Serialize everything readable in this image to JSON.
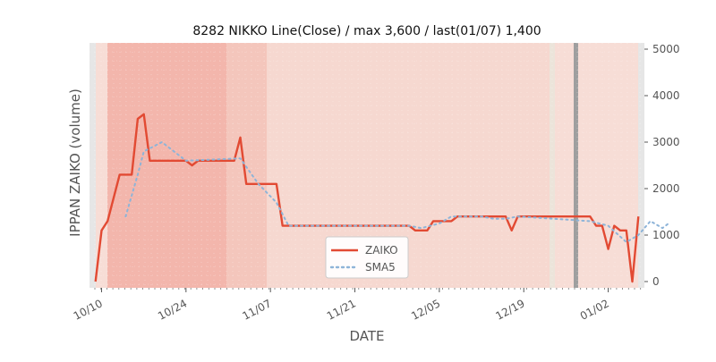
{
  "chart_data": {
    "type": "line",
    "title": "8282 NIKKO Line(Close) / max 3,600 / last(01/07) 1,400",
    "xlabel": "DATE",
    "ylabel": "IPPAN ZAIKO (volume)",
    "ylim": [
      0,
      5000
    ],
    "y_ticks": [
      "0",
      "1000",
      "2000",
      "3000",
      "4000",
      "5000"
    ],
    "y_axis_side": "right",
    "x_ticks": [
      {
        "date": "2021-10-10",
        "label": "10/10"
      },
      {
        "date": "2021-10-24",
        "label": "10/24"
      },
      {
        "date": "2021-11-07",
        "label": "11/07"
      },
      {
        "date": "2021-11-21",
        "label": "11/21"
      },
      {
        "date": "2021-12-05",
        "label": "12/05"
      },
      {
        "date": "2021-12-19",
        "label": "12/19"
      },
      {
        "date": "2022-01-02",
        "label": "01/02"
      }
    ],
    "x_range": [
      "2021-10-08",
      "2022-01-08"
    ],
    "legend_position": "bottom-center",
    "colors": {
      "zaiko": "#e24a33",
      "sma5": "#8eb4d8",
      "highlight": "#9f9f9f"
    },
    "series": [
      {
        "name": "ZAIKO",
        "style": "solid",
        "points": [
          [
            "2021-10-09",
            0
          ],
          [
            "2021-10-10",
            1100
          ],
          [
            "2021-10-11",
            1300
          ],
          [
            "2021-10-13",
            2300
          ],
          [
            "2021-10-15",
            2300
          ],
          [
            "2021-10-16",
            3500
          ],
          [
            "2021-10-17",
            3600
          ],
          [
            "2021-10-18",
            2600
          ],
          [
            "2021-10-24",
            2600
          ],
          [
            "2021-10-25",
            2500
          ],
          [
            "2021-10-26",
            2600
          ],
          [
            "2021-11-01",
            2600
          ],
          [
            "2021-11-02",
            3100
          ],
          [
            "2021-11-03",
            2100
          ],
          [
            "2021-11-08",
            2100
          ],
          [
            "2021-11-09",
            1200
          ],
          [
            "2021-11-30",
            1200
          ],
          [
            "2021-12-01",
            1100
          ],
          [
            "2021-12-03",
            1100
          ],
          [
            "2021-12-04",
            1300
          ],
          [
            "2021-12-07",
            1300
          ],
          [
            "2021-12-08",
            1400
          ],
          [
            "2021-12-16",
            1400
          ],
          [
            "2021-12-17",
            1100
          ],
          [
            "2021-12-18",
            1400
          ],
          [
            "2021-12-30",
            1400
          ],
          [
            "2021-12-31",
            1200
          ],
          [
            "2022-01-01",
            1200
          ],
          [
            "2022-01-02",
            700
          ],
          [
            "2022-01-03",
            1200
          ],
          [
            "2022-01-04",
            1100
          ],
          [
            "2022-01-05",
            1100
          ],
          [
            "2022-01-06",
            0
          ],
          [
            "2022-01-07",
            1400
          ]
        ]
      },
      {
        "name": "SMA5",
        "style": "dotted",
        "points": [
          [
            "2021-10-14",
            1400
          ],
          [
            "2021-10-16",
            2300
          ],
          [
            "2021-10-17",
            2800
          ],
          [
            "2021-10-20",
            3000
          ],
          [
            "2021-10-24",
            2600
          ],
          [
            "2021-11-02",
            2650
          ],
          [
            "2021-11-05",
            2100
          ],
          [
            "2021-11-08",
            1700
          ],
          [
            "2021-11-10",
            1200
          ],
          [
            "2021-11-30",
            1200
          ],
          [
            "2021-12-02",
            1150
          ],
          [
            "2021-12-05",
            1250
          ],
          [
            "2021-12-07",
            1400
          ],
          [
            "2021-12-12",
            1400
          ],
          [
            "2021-12-14",
            1350
          ],
          [
            "2021-12-16",
            1350
          ],
          [
            "2021-12-18",
            1400
          ],
          [
            "2021-12-30",
            1300
          ],
          [
            "2022-01-02",
            1200
          ],
          [
            "2022-01-05",
            850
          ],
          [
            "2022-01-07",
            1000
          ],
          [
            "2022-01-09",
            1300
          ],
          [
            "2022-01-11",
            1150
          ],
          [
            "2022-01-12",
            1250
          ]
        ]
      }
    ]
  }
}
